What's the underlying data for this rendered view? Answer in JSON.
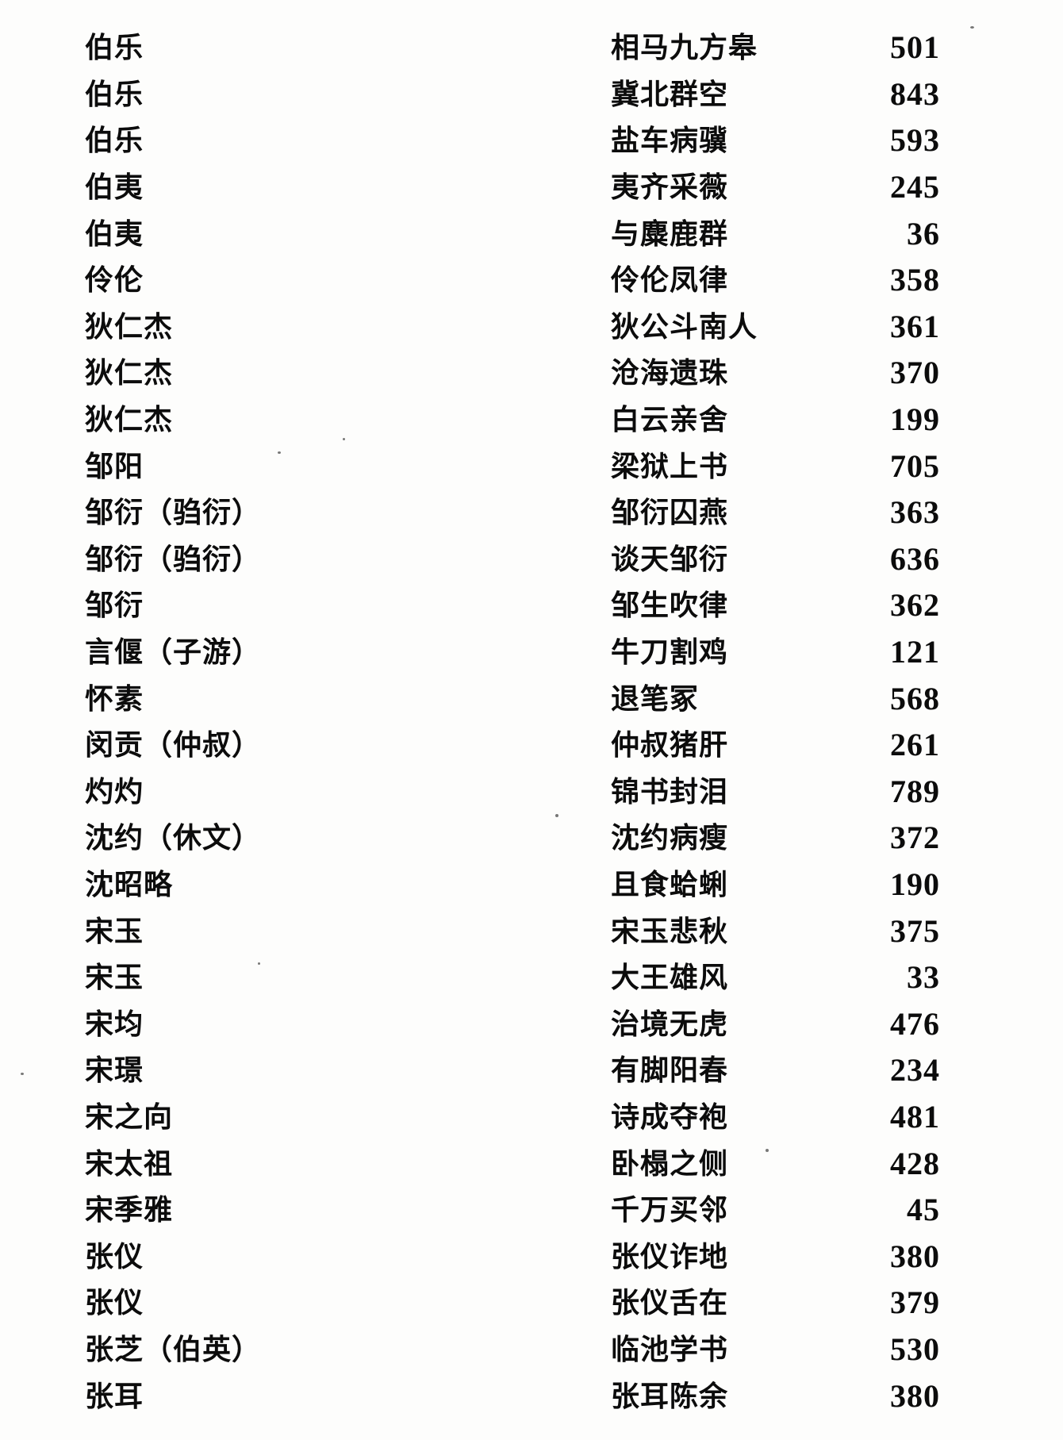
{
  "page": {
    "kind": "scanned-book-index-page",
    "background_color": "#fdfdfc",
    "ink_color": "#0c0c0c"
  },
  "index": {
    "columns": [
      "person",
      "story",
      "page"
    ],
    "rows": [
      {
        "person": "伯乐",
        "story": "相马九方皋",
        "page": "501"
      },
      {
        "person": "伯乐",
        "story": "冀北群空",
        "page": "843"
      },
      {
        "person": "伯乐",
        "story": "盐车病骥",
        "page": "593"
      },
      {
        "person": "伯夷",
        "story": "夷齐采薇",
        "page": "245"
      },
      {
        "person": "伯夷",
        "story": "与麋鹿群",
        "page": "36"
      },
      {
        "person": "伶伦",
        "story": "伶伦凤律",
        "page": "358"
      },
      {
        "person": "狄仁杰",
        "story": "狄公斗南人",
        "page": "361"
      },
      {
        "person": "狄仁杰",
        "story": "沧海遗珠",
        "page": "370"
      },
      {
        "person": "狄仁杰",
        "story": "白云亲舍",
        "page": "199"
      },
      {
        "person": "邹阳",
        "story": "梁狱上书",
        "page": "705"
      },
      {
        "person": "邹衍（驺衍）",
        "story": "邹衍囚燕",
        "page": "363"
      },
      {
        "person": "邹衍（驺衍）",
        "story": "谈天邹衍",
        "page": "636"
      },
      {
        "person": "邹衍",
        "story": "邹生吹律",
        "page": "362"
      },
      {
        "person": "言偃（子游）",
        "story": "牛刀割鸡",
        "page": "121"
      },
      {
        "person": "怀素",
        "story": "退笔冢",
        "page": "568"
      },
      {
        "person": "闵贡（仲叔）",
        "story": "仲叔猪肝",
        "page": "261"
      },
      {
        "person": "灼灼",
        "story": "锦书封泪",
        "page": "789"
      },
      {
        "person": "沈约（休文）",
        "story": "沈约病瘦",
        "page": "372"
      },
      {
        "person": "沈昭略",
        "story": "且食蛤蜊",
        "page": "190"
      },
      {
        "person": "宋玉",
        "story": "宋玉悲秋",
        "page": "375"
      },
      {
        "person": "宋玉",
        "story": "大王雄风",
        "page": "33"
      },
      {
        "person": "宋均",
        "story": "治境无虎",
        "page": "476"
      },
      {
        "person": "宋璟",
        "story": "有脚阳春",
        "page": "234"
      },
      {
        "person": "宋之向",
        "story": "诗成夺袍",
        "page": "481"
      },
      {
        "person": "宋太祖",
        "story": "卧榻之侧",
        "page": "428"
      },
      {
        "person": "宋季雅",
        "story": "千万买邻",
        "page": "45"
      },
      {
        "person": "张仪",
        "story": "张仪诈地",
        "page": "380"
      },
      {
        "person": "张仪",
        "story": "张仪舌在",
        "page": "379"
      },
      {
        "person": "张芝（伯英）",
        "story": "临池学书",
        "page": "530"
      },
      {
        "person": "张耳",
        "story": "张耳陈余",
        "page": "380"
      }
    ]
  }
}
